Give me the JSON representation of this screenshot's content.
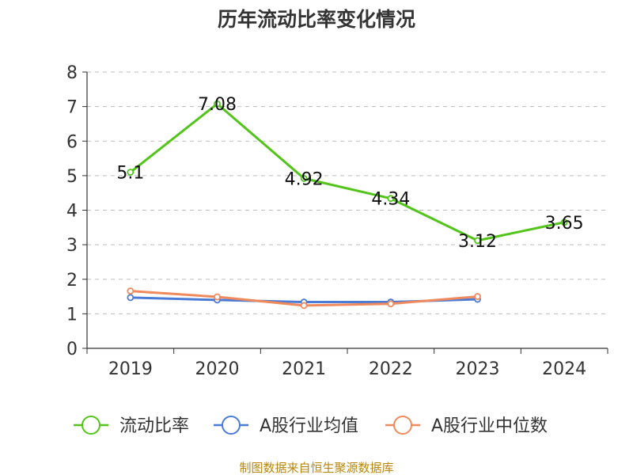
{
  "chart_data": {
    "type": "line",
    "title": "历年流动比率变化情况",
    "categories": [
      "2019",
      "2020",
      "2021",
      "2022",
      "2023",
      "2024"
    ],
    "ylim": [
      0,
      8
    ],
    "yticks": [
      "0",
      "1",
      "2",
      "3",
      "4",
      "5",
      "6",
      "7",
      "8"
    ],
    "grid": true,
    "legend_position": "bottom",
    "series": [
      {
        "name": "流动比率",
        "color": "#52c41a",
        "values": [
          5.1,
          7.08,
          4.92,
          4.34,
          3.12,
          3.65
        ],
        "labels": [
          "5.1",
          "7.08",
          "4.92",
          "4.34",
          "3.12",
          "3.65"
        ]
      },
      {
        "name": "A股行业均值",
        "color": "#4a7bd6",
        "values": [
          1.47,
          1.4,
          1.34,
          1.34,
          1.42,
          null
        ]
      },
      {
        "name": "A股行业中位数",
        "color": "#f08a5d",
        "values": [
          1.66,
          1.49,
          1.24,
          1.29,
          1.5,
          null
        ]
      }
    ]
  },
  "source_text": "制图数据来自恒生聚源数据库"
}
